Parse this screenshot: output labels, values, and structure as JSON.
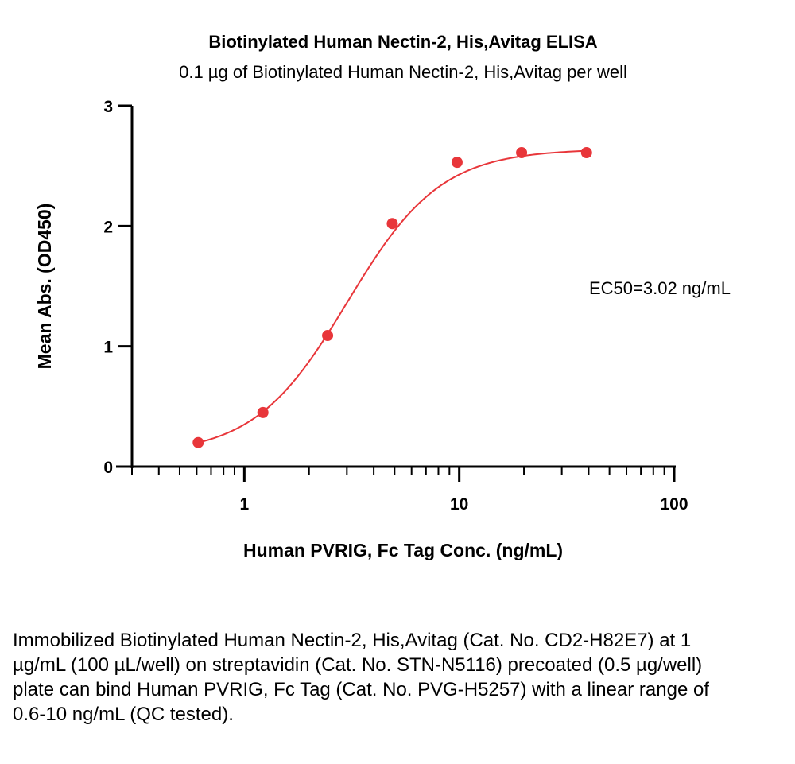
{
  "chart_data": {
    "type": "scatter",
    "title": "Biotinylated Human Nectin-2, His,Avitag ELISA",
    "subtitle": "0.1 µg of Biotinylated Human Nectin-2, His,Avitag per well",
    "xlabel": "Human PVRIG, Fc Tag Conc. (ng/mL)",
    "ylabel": "Mean Abs. (OD450)",
    "x_scale": "log",
    "xlim": [
      0.3,
      100
    ],
    "ylim": [
      0,
      3
    ],
    "x_ticks": [
      1,
      10,
      100
    ],
    "x_tick_labels": [
      "1",
      "10",
      "100"
    ],
    "y_ticks": [
      0,
      1,
      2,
      3
    ],
    "y_tick_labels": [
      "0",
      "1",
      "2",
      "3"
    ],
    "grid": false,
    "series": [
      {
        "x": [
          0.61,
          1.22,
          2.44,
          4.88,
          9.77,
          19.5,
          39.1
        ],
        "y": [
          0.2,
          0.45,
          1.09,
          2.02,
          2.53,
          2.61,
          2.61
        ],
        "color": "#e8363a",
        "fit": "4PL"
      }
    ],
    "annotation": "EC50=3.02 ng/mL"
  },
  "caption": "Immobilized Biotinylated Human Nectin-2, His,Avitag (Cat. No. CD2-H82E7) at 1 µg/mL (100 µL/well) on streptavidin (Cat. No. STN-N5116) precoated (0.5 µg/well) plate can bind Human PVRIG, Fc Tag (Cat. No. PVG-H5257) with a linear range of 0.6-10 ng/mL (QC tested)."
}
